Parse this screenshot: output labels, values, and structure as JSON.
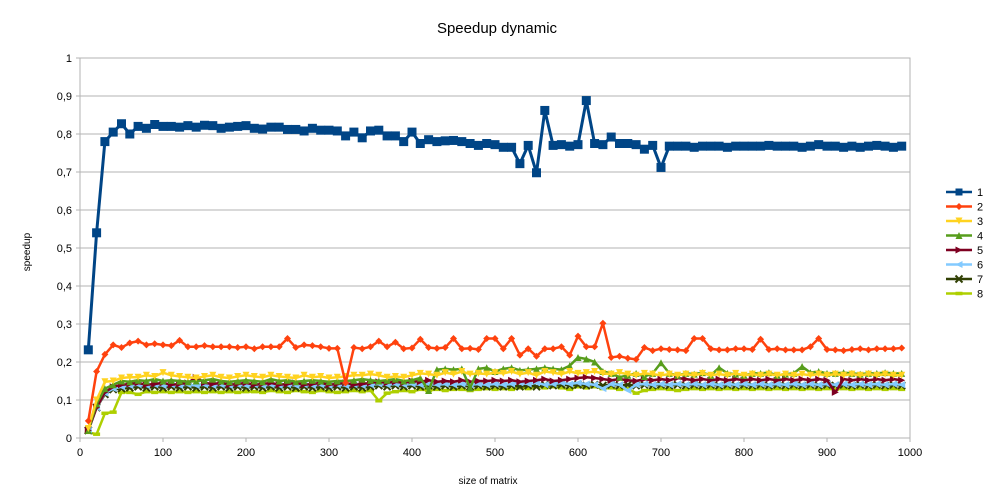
{
  "chart_data": {
    "type": "line",
    "title": "Speedup dynamic",
    "xlabel": "size of matrix",
    "ylabel": "speedup",
    "xlim": [
      0,
      1000
    ],
    "ylim": [
      0,
      1
    ],
    "x_ticks": [
      "0",
      "100",
      "200",
      "300",
      "400",
      "500",
      "600",
      "700",
      "800",
      "900",
      "1000"
    ],
    "y_ticks": [
      "0",
      "0,1",
      "0,2",
      "0,3",
      "0,4",
      "0,5",
      "0,6",
      "0,7",
      "0,8",
      "0,9",
      "1"
    ],
    "grid": true,
    "legend_position": "right",
    "x": [
      10,
      20,
      30,
      40,
      50,
      60,
      70,
      80,
      90,
      100,
      110,
      120,
      130,
      140,
      150,
      160,
      170,
      180,
      190,
      200,
      210,
      220,
      230,
      240,
      250,
      260,
      270,
      280,
      290,
      300,
      310,
      320,
      330,
      340,
      350,
      360,
      370,
      380,
      390,
      400,
      410,
      420,
      430,
      440,
      450,
      460,
      470,
      480,
      490,
      500,
      510,
      520,
      530,
      540,
      550,
      560,
      570,
      580,
      590,
      600,
      610,
      620,
      630,
      640,
      650,
      660,
      670,
      680,
      690,
      700,
      710,
      720,
      730,
      740,
      750,
      760,
      770,
      780,
      790,
      800,
      810,
      820,
      830,
      840,
      850,
      860,
      870,
      880,
      890,
      900,
      910,
      920,
      930,
      940,
      950,
      960,
      970,
      980,
      990
    ],
    "series": [
      {
        "name": "1",
        "color": "#004586",
        "marker": "square",
        "values": [
          0.232,
          0.54,
          0.78,
          0.805,
          0.827,
          0.8,
          0.82,
          0.815,
          0.825,
          0.82,
          0.82,
          0.818,
          0.822,
          0.818,
          0.823,
          0.822,
          0.815,
          0.818,
          0.82,
          0.822,
          0.815,
          0.813,
          0.818,
          0.818,
          0.812,
          0.812,
          0.808,
          0.815,
          0.81,
          0.81,
          0.808,
          0.795,
          0.805,
          0.79,
          0.808,
          0.81,
          0.795,
          0.795,
          0.78,
          0.805,
          0.775,
          0.785,
          0.78,
          0.782,
          0.783,
          0.78,
          0.775,
          0.77,
          0.775,
          0.772,
          0.765,
          0.765,
          0.722,
          0.77,
          0.698,
          0.862,
          0.77,
          0.772,
          0.768,
          0.772,
          0.888,
          0.775,
          0.772,
          0.792,
          0.775,
          0.775,
          0.772,
          0.76,
          0.77,
          0.712,
          0.768,
          0.768,
          0.768,
          0.765,
          0.768,
          0.768,
          0.768,
          0.765,
          0.768,
          0.768,
          0.768,
          0.768,
          0.77,
          0.768,
          0.768,
          0.768,
          0.765,
          0.768,
          0.772,
          0.768,
          0.768,
          0.765,
          0.768,
          0.765,
          0.768,
          0.77,
          0.768,
          0.765,
          0.768
        ]
      },
      {
        "name": "2",
        "color": "#ff420e",
        "marker": "diamond",
        "values": [
          0.045,
          0.175,
          0.22,
          0.245,
          0.238,
          0.25,
          0.255,
          0.245,
          0.248,
          0.245,
          0.243,
          0.257,
          0.24,
          0.24,
          0.243,
          0.24,
          0.24,
          0.24,
          0.238,
          0.24,
          0.235,
          0.24,
          0.24,
          0.24,
          0.262,
          0.238,
          0.245,
          0.243,
          0.24,
          0.236,
          0.236,
          0.145,
          0.238,
          0.235,
          0.24,
          0.255,
          0.24,
          0.252,
          0.235,
          0.237,
          0.26,
          0.238,
          0.236,
          0.238,
          0.262,
          0.235,
          0.236,
          0.233,
          0.262,
          0.262,
          0.235,
          0.262,
          0.218,
          0.235,
          0.215,
          0.235,
          0.235,
          0.24,
          0.218,
          0.268,
          0.24,
          0.24,
          0.302,
          0.212,
          0.215,
          0.21,
          0.207,
          0.238,
          0.23,
          0.235,
          0.233,
          0.232,
          0.23,
          0.262,
          0.262,
          0.235,
          0.232,
          0.232,
          0.235,
          0.235,
          0.233,
          0.26,
          0.233,
          0.235,
          0.232,
          0.232,
          0.232,
          0.24,
          0.262,
          0.233,
          0.232,
          0.23,
          0.233,
          0.235,
          0.232,
          0.235,
          0.235,
          0.235,
          0.237
        ]
      },
      {
        "name": "3",
        "color": "#ffd320",
        "marker": "triangle-down",
        "values": [
          0.025,
          0.1,
          0.148,
          0.15,
          0.158,
          0.16,
          0.16,
          0.165,
          0.162,
          0.172,
          0.165,
          0.162,
          0.16,
          0.158,
          0.162,
          0.165,
          0.16,
          0.158,
          0.162,
          0.165,
          0.162,
          0.16,
          0.165,
          0.162,
          0.16,
          0.158,
          0.165,
          0.16,
          0.162,
          0.158,
          0.16,
          0.162,
          0.165,
          0.165,
          0.168,
          0.165,
          0.16,
          0.162,
          0.16,
          0.165,
          0.17,
          0.168,
          0.165,
          0.172,
          0.168,
          0.175,
          0.168,
          0.17,
          0.168,
          0.172,
          0.17,
          0.175,
          0.168,
          0.172,
          0.165,
          0.175,
          0.172,
          0.168,
          0.175,
          0.17,
          0.172,
          0.175,
          0.17,
          0.168,
          0.172,
          0.168,
          0.165,
          0.17,
          0.168,
          0.165,
          0.168,
          0.165,
          0.168,
          0.165,
          0.17,
          0.165,
          0.168,
          0.165,
          0.17,
          0.165,
          0.168,
          0.165,
          0.168,
          0.165,
          0.168,
          0.165,
          0.168,
          0.165,
          0.168,
          0.165,
          0.168,
          0.165,
          0.168,
          0.165,
          0.168,
          0.165,
          0.168,
          0.165,
          0.165
        ]
      },
      {
        "name": "4",
        "color": "#579d1c",
        "marker": "triangle-up",
        "values": [
          0.02,
          0.09,
          0.13,
          0.14,
          0.15,
          0.148,
          0.152,
          0.15,
          0.155,
          0.15,
          0.152,
          0.15,
          0.148,
          0.15,
          0.152,
          0.155,
          0.15,
          0.148,
          0.15,
          0.152,
          0.15,
          0.148,
          0.155,
          0.15,
          0.152,
          0.148,
          0.15,
          0.152,
          0.15,
          0.148,
          0.15,
          0.15,
          0.152,
          0.155,
          0.152,
          0.15,
          0.152,
          0.155,
          0.15,
          0.152,
          0.158,
          0.125,
          0.18,
          0.182,
          0.18,
          0.182,
          0.132,
          0.182,
          0.185,
          0.175,
          0.182,
          0.185,
          0.178,
          0.18,
          0.182,
          0.185,
          0.182,
          0.18,
          0.19,
          0.212,
          0.208,
          0.2,
          0.175,
          0.17,
          0.16,
          0.165,
          0.17,
          0.162,
          0.17,
          0.198,
          0.17,
          0.165,
          0.17,
          0.168,
          0.172,
          0.165,
          0.185,
          0.17,
          0.168,
          0.165,
          0.17,
          0.17,
          0.172,
          0.165,
          0.168,
          0.17,
          0.188,
          0.172,
          0.175,
          0.17,
          0.17,
          0.172,
          0.17,
          0.168,
          0.17,
          0.17,
          0.172,
          0.17,
          0.17
        ]
      },
      {
        "name": "5",
        "color": "#7e0021",
        "marker": "triangle-right",
        "values": [
          0.02,
          0.08,
          0.12,
          0.135,
          0.14,
          0.142,
          0.145,
          0.14,
          0.142,
          0.145,
          0.14,
          0.142,
          0.145,
          0.16,
          0.145,
          0.142,
          0.145,
          0.14,
          0.142,
          0.145,
          0.14,
          0.142,
          0.145,
          0.14,
          0.142,
          0.145,
          0.14,
          0.142,
          0.145,
          0.14,
          0.142,
          0.145,
          0.14,
          0.142,
          0.145,
          0.148,
          0.145,
          0.148,
          0.145,
          0.15,
          0.148,
          0.152,
          0.148,
          0.15,
          0.148,
          0.152,
          0.148,
          0.15,
          0.15,
          0.152,
          0.15,
          0.152,
          0.148,
          0.15,
          0.152,
          0.155,
          0.15,
          0.152,
          0.155,
          0.158,
          0.16,
          0.158,
          0.155,
          0.152,
          0.155,
          0.152,
          0.15,
          0.155,
          0.152,
          0.155,
          0.152,
          0.158,
          0.155,
          0.152,
          0.155,
          0.152,
          0.155,
          0.152,
          0.155,
          0.152,
          0.155,
          0.152,
          0.155,
          0.152,
          0.155,
          0.152,
          0.155,
          0.152,
          0.155,
          0.152,
          0.12,
          0.155,
          0.152,
          0.155,
          0.152,
          0.155,
          0.152,
          0.155,
          0.152
        ]
      },
      {
        "name": "6",
        "color": "#83caff",
        "marker": "triangle-left",
        "values": [
          0.02,
          0.08,
          0.118,
          0.13,
          0.135,
          0.138,
          0.14,
          0.138,
          0.14,
          0.138,
          0.14,
          0.138,
          0.14,
          0.138,
          0.14,
          0.138,
          0.14,
          0.138,
          0.14,
          0.138,
          0.14,
          0.138,
          0.14,
          0.138,
          0.14,
          0.138,
          0.14,
          0.138,
          0.14,
          0.138,
          0.14,
          0.138,
          0.14,
          0.138,
          0.14,
          0.142,
          0.14,
          0.142,
          0.14,
          0.142,
          0.14,
          0.142,
          0.14,
          0.142,
          0.14,
          0.142,
          0.14,
          0.142,
          0.14,
          0.142,
          0.14,
          0.142,
          0.145,
          0.142,
          0.145,
          0.14,
          0.142,
          0.145,
          0.142,
          0.145,
          0.142,
          0.14,
          0.13,
          0.142,
          0.14,
          0.125,
          0.14,
          0.142,
          0.14,
          0.142,
          0.14,
          0.142,
          0.14,
          0.142,
          0.14,
          0.142,
          0.14,
          0.142,
          0.14,
          0.142,
          0.14,
          0.142,
          0.14,
          0.142,
          0.14,
          0.142,
          0.14,
          0.142,
          0.14,
          0.142,
          0.14,
          0.142,
          0.14,
          0.142,
          0.14,
          0.142,
          0.14,
          0.142,
          0.14
        ]
      },
      {
        "name": "7",
        "color": "#314004",
        "marker": "x",
        "values": [
          0.02,
          0.08,
          0.115,
          0.128,
          0.13,
          0.132,
          0.135,
          0.132,
          0.135,
          0.132,
          0.135,
          0.132,
          0.135,
          0.132,
          0.135,
          0.132,
          0.135,
          0.132,
          0.135,
          0.132,
          0.135,
          0.132,
          0.135,
          0.132,
          0.135,
          0.132,
          0.135,
          0.132,
          0.135,
          0.132,
          0.135,
          0.132,
          0.135,
          0.132,
          0.135,
          0.138,
          0.135,
          0.138,
          0.135,
          0.138,
          0.135,
          0.138,
          0.135,
          0.138,
          0.135,
          0.138,
          0.135,
          0.138,
          0.135,
          0.138,
          0.135,
          0.138,
          0.135,
          0.138,
          0.135,
          0.14,
          0.138,
          0.14,
          0.138,
          0.14,
          0.138,
          0.14,
          0.138,
          0.14,
          0.138,
          0.14,
          0.138,
          0.14,
          0.138,
          0.14,
          0.138,
          0.14,
          0.138,
          0.14,
          0.138,
          0.14,
          0.138,
          0.14,
          0.138,
          0.14,
          0.138,
          0.14,
          0.138,
          0.14,
          0.138,
          0.14,
          0.138,
          0.14,
          0.138,
          0.14,
          0.138,
          0.14,
          0.138,
          0.14,
          0.138,
          0.14,
          0.138,
          0.14,
          0.138
        ]
      },
      {
        "name": "8",
        "color": "#aecf00",
        "marker": "dash",
        "values": [
          0.015,
          0.01,
          0.065,
          0.068,
          0.12,
          0.12,
          0.115,
          0.122,
          0.12,
          0.122,
          0.12,
          0.122,
          0.12,
          0.122,
          0.12,
          0.122,
          0.12,
          0.122,
          0.12,
          0.122,
          0.122,
          0.12,
          0.125,
          0.122,
          0.12,
          0.125,
          0.122,
          0.12,
          0.125,
          0.122,
          0.12,
          0.122,
          0.125,
          0.122,
          0.125,
          0.098,
          0.118,
          0.122,
          0.125,
          0.122,
          0.128,
          0.125,
          0.128,
          0.125,
          0.128,
          0.128,
          0.125,
          0.128,
          0.13,
          0.128,
          0.13,
          0.128,
          0.132,
          0.13,
          0.135,
          0.132,
          0.135,
          0.132,
          0.128,
          0.135,
          0.132,
          0.135,
          0.13,
          0.132,
          0.128,
          0.13,
          0.118,
          0.125,
          0.128,
          0.13,
          0.128,
          0.125,
          0.128,
          0.13,
          0.128,
          0.13,
          0.128,
          0.13,
          0.128,
          0.13,
          0.128,
          0.13,
          0.128,
          0.13,
          0.128,
          0.13,
          0.128,
          0.13,
          0.128,
          0.13,
          0.128,
          0.13,
          0.128,
          0.13,
          0.128,
          0.13,
          0.128,
          0.13,
          0.128
        ]
      }
    ]
  }
}
